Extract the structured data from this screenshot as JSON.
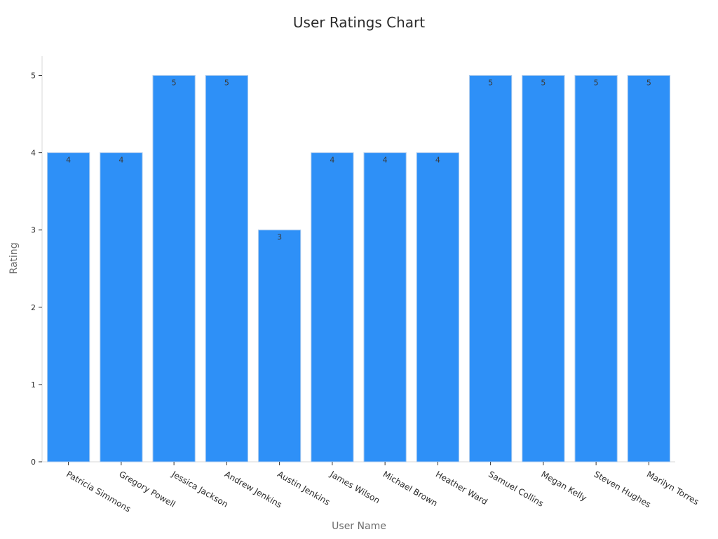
{
  "chart_data": {
    "type": "bar",
    "title": "User Ratings Chart",
    "xlabel": "User Name",
    "ylabel": "Rating",
    "categories": [
      "Patricia Simmons",
      "Gregory Powell",
      "Jessica Jackson",
      "Andrew Jenkins",
      "Austin Jenkins",
      "James Wilson",
      "Michael Brown",
      "Heather Ward",
      "Samuel Collins",
      "Megan Kelly",
      "Steven Hughes",
      "Marilyn Torres"
    ],
    "values": [
      4,
      4,
      5,
      5,
      3,
      4,
      4,
      4,
      5,
      5,
      5,
      5
    ],
    "ylim": [
      0,
      5.25
    ],
    "yticks": [
      0,
      1,
      2,
      3,
      4,
      5
    ],
    "grid": false,
    "bar_color": "#2e90f7",
    "show_data_labels": true
  }
}
